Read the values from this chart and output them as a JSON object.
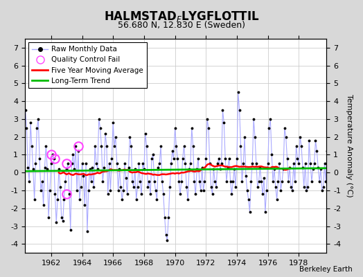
{
  "title_main": "HALMSTAD",
  "title_sub_letter": "F",
  "title_end": "LYGFLOTTIL",
  "subtitle": "56.680 N, 12.830 E (Sweden)",
  "ylabel": "Temperature Anomaly (°C)",
  "xlim": [
    1960.3,
    1979.8
  ],
  "ylim": [
    -4.5,
    7.5
  ],
  "yticks": [
    -4,
    -3,
    -2,
    -1,
    0,
    1,
    2,
    3,
    4,
    5,
    6,
    7
  ],
  "xticks": [
    1962,
    1964,
    1966,
    1968,
    1970,
    1972,
    1974,
    1976,
    1978
  ],
  "bg_color": "#d8d8d8",
  "plot_bg_color": "#ffffff",
  "raw_line_color": "#aaaaff",
  "raw_dot_color": "#000000",
  "ma_color": "#ff0000",
  "trend_color": "#00bb00",
  "qc_color": "#ff44ff",
  "watermark": "Berkeley Earth",
  "title_fontsize": 12,
  "subtitle_fontsize": 9,
  "tick_fontsize": 8,
  "ylabel_fontsize": 8,
  "legend_fontsize": 7.5
}
